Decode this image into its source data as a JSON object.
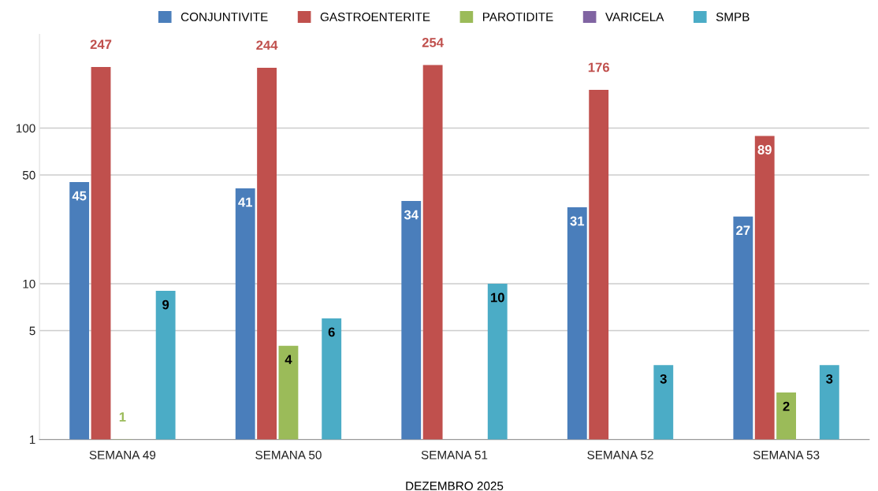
{
  "chart_data": {
    "type": "bar",
    "xlabel": "DEZEMBRO 2025",
    "categories": [
      "SEMANA 49",
      "SEMANA 50",
      "SEMANA 51",
      "SEMANA 52",
      "SEMANA 53"
    ],
    "series": [
      {
        "name": "CONJUNTIVITE",
        "color": "#4a7ebb",
        "values": [
          45,
          41,
          34,
          31,
          27
        ]
      },
      {
        "name": "GASTROENTERITE",
        "color": "#c0504d",
        "values": [
          247,
          244,
          254,
          176,
          89
        ]
      },
      {
        "name": "PAROTIDITE",
        "color": "#9bbb59",
        "values": [
          1,
          4,
          null,
          null,
          2
        ]
      },
      {
        "name": "VARICELA",
        "color": "#8064a2",
        "values": [
          null,
          null,
          null,
          null,
          null
        ]
      },
      {
        "name": "SMPB",
        "color": "#4bacc6",
        "values": [
          9,
          6,
          10,
          3,
          3
        ]
      }
    ],
    "log": "y",
    "ylim": [
      1,
      400
    ],
    "yticks": [
      1,
      5,
      10,
      50,
      100
    ],
    "grid": "y",
    "legend": "top",
    "data_labels": true
  }
}
